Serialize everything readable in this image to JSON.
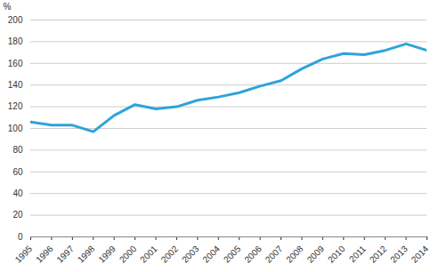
{
  "chart_data": {
    "type": "line",
    "x": [
      1995,
      1996,
      1997,
      1998,
      1999,
      2000,
      2001,
      2002,
      2003,
      2004,
      2005,
      2006,
      2007,
      2008,
      2009,
      2010,
      2011,
      2012,
      2013,
      2014
    ],
    "values": [
      106,
      103,
      103,
      97,
      112,
      122,
      118,
      120,
      126,
      129,
      133,
      139,
      144,
      155,
      164,
      169,
      168,
      172,
      178,
      172
    ],
    "color": "#2ea3dc",
    "xlim": [
      1995,
      2014
    ],
    "xticks": [
      1995,
      1996,
      1997,
      1998,
      1999,
      2000,
      2001,
      2002,
      2003,
      2004,
      2005,
      2006,
      2007,
      2008,
      2009,
      2010,
      2011,
      2012,
      2013,
      2014
    ],
    "ylim": [
      0,
      200
    ],
    "yticks": [
      0,
      20,
      40,
      60,
      80,
      100,
      120,
      140,
      160,
      180,
      200
    ],
    "ylabel": "%",
    "grid": true
  }
}
